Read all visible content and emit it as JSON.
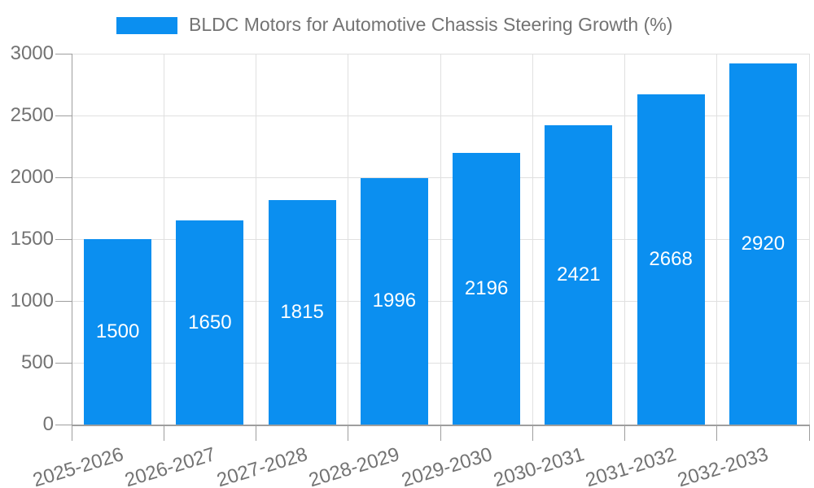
{
  "chart_data": {
    "type": "bar",
    "title": "BLDC Motors for Automotive Chassis Steering Growth (%)",
    "categories": [
      "2025-2026",
      "2026-2027",
      "2027-2028",
      "2028-2029",
      "2029-2030",
      "2030-2031",
      "2031-2032",
      "2032-2033"
    ],
    "values": [
      1500,
      1650,
      1815,
      1996,
      2196,
      2421,
      2668,
      2920
    ],
    "xlabel": "",
    "ylabel": "",
    "ylim": [
      0,
      3000
    ],
    "yticks": [
      0,
      500,
      1000,
      1500,
      2000,
      2500,
      3000
    ],
    "grid": true,
    "legend_position": "top-center",
    "value_labels_inside_bars": true
  },
  "colors": {
    "bar": "#0b8ff0",
    "grid": "#e0e0e0",
    "axis": "#9e9e9e",
    "tick_label": "#737373",
    "legend_text": "#737373",
    "value_label": "#ffffff",
    "background": "#ffffff"
  }
}
